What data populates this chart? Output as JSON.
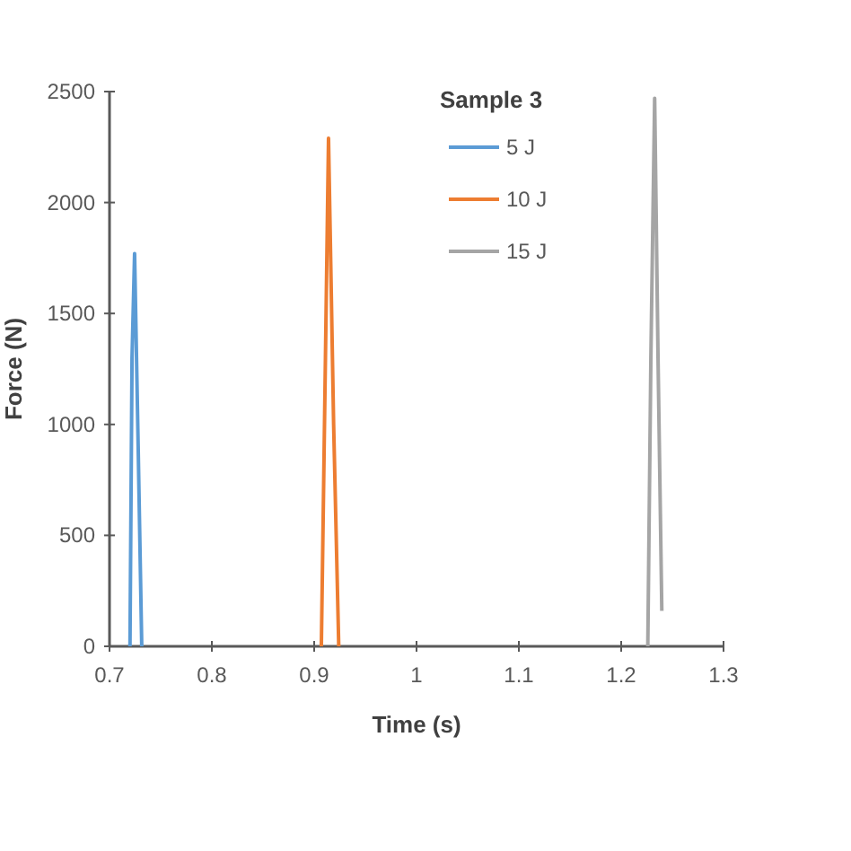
{
  "chart_data": {
    "type": "line",
    "legend_title": "Sample 3",
    "xlabel": "Time (s)",
    "ylabel": "Force (N)",
    "series": [
      {
        "name": "5 J",
        "color": "#5b9bd5",
        "x": [
          0.72,
          0.722,
          0.7245,
          0.728,
          0.7315
        ],
        "values": [
          0,
          1300,
          1770,
          900,
          0
        ]
      },
      {
        "name": "10 J",
        "color": "#ed7d31",
        "x": [
          0.907,
          0.911,
          0.914,
          0.919,
          0.924
        ],
        "values": [
          0,
          1300,
          2290,
          1000,
          0
        ]
      },
      {
        "name": "15 J",
        "color": "#a5a5a5",
        "x": [
          1.226,
          1.229,
          1.2327,
          1.236,
          1.2397
        ],
        "values": [
          0,
          1300,
          2470,
          1300,
          160
        ]
      }
    ],
    "xlim": [
      0.7,
      1.3
    ],
    "xticks": [
      0.7,
      0.8,
      0.9,
      1,
      1.1,
      1.2,
      1.3
    ],
    "ylim": [
      0,
      2500
    ],
    "yticks": [
      0,
      500,
      1000,
      1500,
      2000,
      2500
    ],
    "grid": false,
    "legend": "top",
    "marker": "none",
    "line_style": "solid"
  }
}
